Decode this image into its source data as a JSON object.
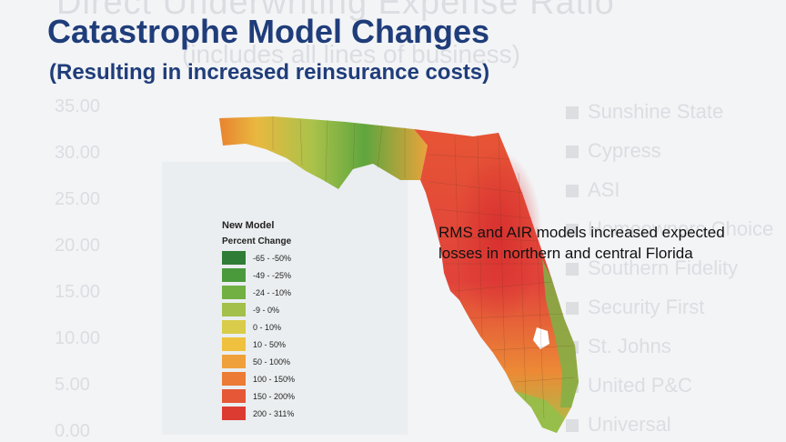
{
  "slide": {
    "title": "Catastrophe Model Changes",
    "subtitle": "(Resulting in increased reinsurance costs)"
  },
  "map": {
    "legend_title": "New Model",
    "legend_subtitle": "Percent Change",
    "legend": [
      {
        "label": "-65 - -50%",
        "color": "#2f7d36"
      },
      {
        "label": "-49 - -25%",
        "color": "#4a9a3c"
      },
      {
        "label": "-24 - -10%",
        "color": "#72b043"
      },
      {
        "label": "-9 - 0%",
        "color": "#a3c04b"
      },
      {
        "label": "0 - 10%",
        "color": "#d8cc4a"
      },
      {
        "label": "10 - 50%",
        "color": "#efc13e"
      },
      {
        "label": "50 - 100%",
        "color": "#f0a03a"
      },
      {
        "label": "100 - 150%",
        "color": "#ec7b35"
      },
      {
        "label": "150 - 200%",
        "color": "#e55736"
      },
      {
        "label": "200 - 311%",
        "color": "#dc3b32"
      }
    ],
    "annotation": "RMS and AIR models increased expected losses in northern  and central Florida"
  },
  "background_ghost": {
    "title": "Direct Underwriting Expense Ratio",
    "subtitle": "(includes all lines of business)",
    "y_ticks": [
      "35.00",
      "30.00",
      "25.00",
      "20.00",
      "15.00",
      "10.00",
      "5.00",
      "0.00"
    ],
    "legend": [
      "Sunshine State",
      "Cypress",
      "ASI",
      "Homeowners Choice",
      "Southern Fidelity",
      "Security First",
      "St. Johns",
      "United P&C",
      "Universal"
    ]
  }
}
